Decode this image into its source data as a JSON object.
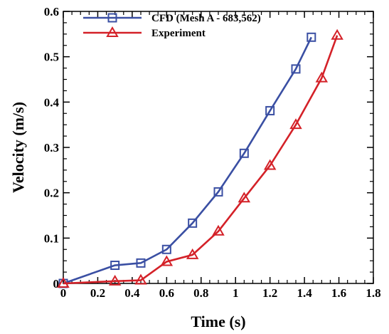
{
  "chart_data": {
    "type": "line",
    "title": "",
    "xlabel": "Time (s)",
    "ylabel": "Velocity (m/s)",
    "xlim": [
      0,
      1.8
    ],
    "ylim": [
      0,
      0.6
    ],
    "x_ticks": [
      0,
      0.2,
      0.4,
      0.6,
      0.8,
      1,
      1.2,
      1.4,
      1.6,
      1.8
    ],
    "x_tick_labels": [
      "0",
      "0.2",
      "0.4",
      "0.6",
      "0.8",
      "1",
      "1.2",
      "1.4",
      "1.6",
      "1.8"
    ],
    "y_ticks": [
      0,
      0.1,
      0.2,
      0.3,
      0.4,
      0.5,
      0.6
    ],
    "y_tick_labels": [
      "0",
      "0.1",
      "0.2",
      "0.3",
      "0.4",
      "0.5",
      "0.6"
    ],
    "grid": false,
    "legend_position": "top-left",
    "series": [
      {
        "name": "CFD (Mesh A - 683,562)",
        "color": "#3a4fa3",
        "marker": "square",
        "x": [
          0,
          0.3,
          0.45,
          0.6,
          0.75,
          0.9,
          1.05,
          1.2,
          1.35,
          1.44
        ],
        "y": [
          0,
          0.04,
          0.045,
          0.075,
          0.133,
          0.202,
          0.287,
          0.381,
          0.473,
          0.543
        ]
      },
      {
        "name": "Experiment",
        "color": "#d42128",
        "marker": "triangle",
        "x": [
          0,
          0.3,
          0.45,
          0.6,
          0.75,
          0.9,
          1.05,
          1.2,
          1.35,
          1.5,
          1.59
        ],
        "y": [
          0,
          0.005,
          0.007,
          0.048,
          0.063,
          0.115,
          0.188,
          0.26,
          0.35,
          0.453,
          0.547
        ]
      }
    ]
  }
}
